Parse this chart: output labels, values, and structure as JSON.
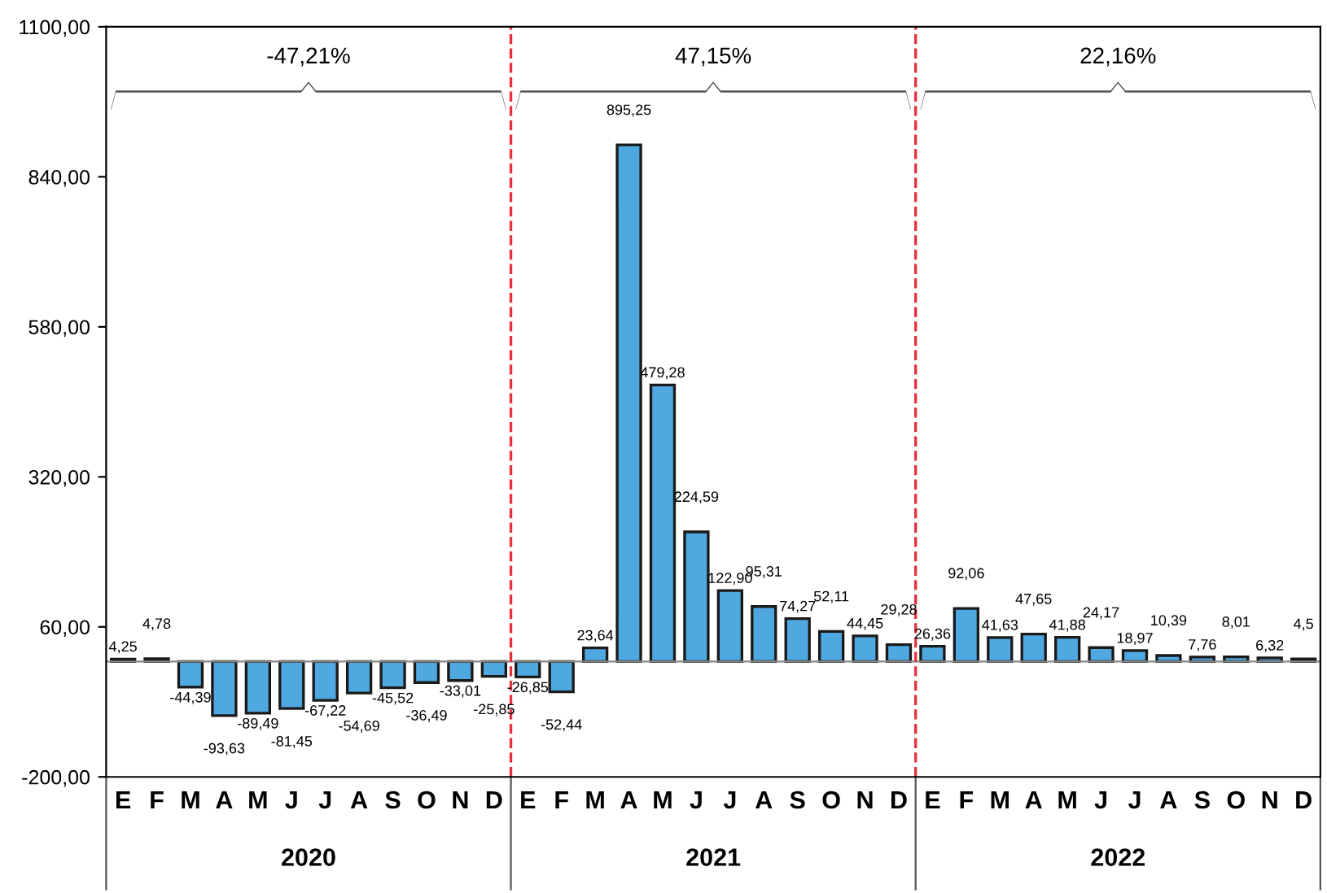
{
  "chart_data": {
    "type": "bar",
    "categories": [
      "E",
      "F",
      "M",
      "A",
      "M",
      "J",
      "J",
      "A",
      "S",
      "O",
      "N",
      "D",
      "E",
      "F",
      "M",
      "A",
      "M",
      "J",
      "J",
      "A",
      "S",
      "O",
      "N",
      "D",
      "E",
      "F",
      "M",
      "A",
      "M",
      "J",
      "J",
      "A",
      "S",
      "O",
      "N",
      "D"
    ],
    "series": [
      {
        "color": "#4fa8e0",
        "values": [
          4.25,
          4.78,
          -44.39,
          -93.63,
          -89.49,
          -81.45,
          -67.22,
          -54.69,
          -45.52,
          -36.49,
          -33.01,
          -25.85,
          -26.85,
          -52.44,
          23.64,
          895.25,
          479.28,
          224.59,
          122.9,
          95.31,
          74.27,
          52.11,
          44.45,
          29.28,
          26.36,
          92.06,
          41.63,
          47.65,
          41.88,
          24.17,
          18.97,
          10.39,
          7.76,
          8.01,
          6.32,
          4.5
        ],
        "value_labels": [
          "4,25",
          "4,78",
          "-44,39",
          "-93,63",
          "-89,49",
          "-81,45",
          "-67,22",
          "-54,69",
          "-45,52",
          "-36,49",
          "-33,01",
          "-25,85",
          "-26,85",
          "-52,44",
          "23,64",
          "895,25",
          "479,28",
          "224,59",
          "122,90",
          "95,31",
          "74,27",
          "52,11",
          "44,45",
          "29,28",
          "26,36",
          "92,06",
          "41,63",
          "47,65",
          "41,88",
          "24,17",
          "18,97",
          "10,39",
          "7,76",
          "8,01",
          "6,32",
          "4,5"
        ]
      }
    ],
    "ylim": [
      -200,
      1100
    ],
    "yticks": [
      {
        "value": -200,
        "label": "-200,00"
      },
      {
        "value": 60,
        "label": "60,00"
      },
      {
        "value": 320,
        "label": "320,00"
      },
      {
        "value": 580,
        "label": "580,00"
      },
      {
        "value": 840,
        "label": "840,00"
      },
      {
        "value": 1100,
        "label": "1100,00"
      }
    ],
    "annotations": [
      "-47,21%",
      "47,15%",
      "22,16%",
      "2020",
      "2021",
      "2022"
    ],
    "grid": false,
    "legend": false
  }
}
